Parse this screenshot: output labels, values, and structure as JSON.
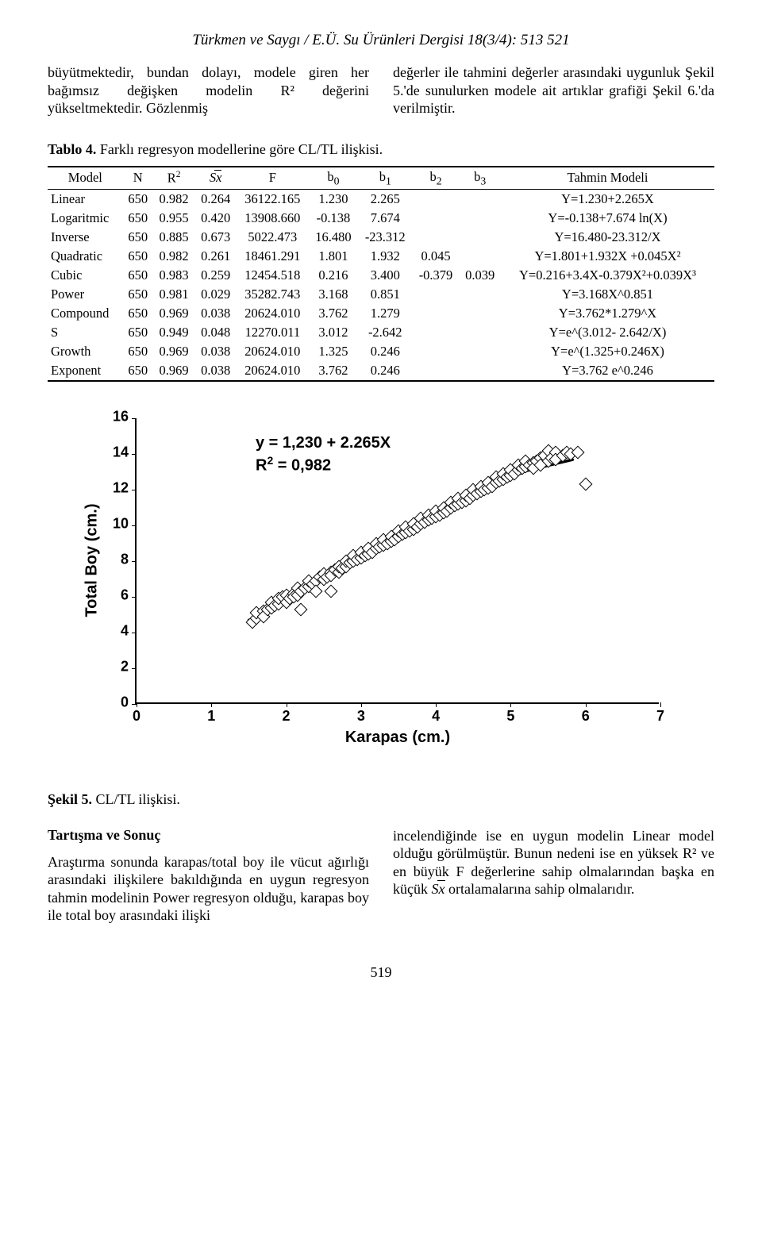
{
  "journal_header": "Türkmen ve Saygı / E.Ü. Su Ürünleri Dergisi 18(3/4): 513 521",
  "intro": {
    "left": "büyütmektedir, bundan dolayı, modele giren her bağımsız değişken modelin R² değerini yükseltmektedir. Gözlenmiş",
    "right": "değerler ile tahmini değerler arasındaki uygunluk Şekil 5.'de sunulurken modele ait artıklar grafiği Şekil 6.'da verilmiştir."
  },
  "table4": {
    "caption_strong": "Tablo 4.",
    "caption_rest": " Farklı regresyon modellerine göre CL/TL ilişkisi.",
    "headers": [
      "Model",
      "N",
      "R²",
      "Sx̄",
      "F",
      "b₀",
      "b₁",
      "b₂",
      "b₃",
      "Tahmin Modeli"
    ],
    "rows": [
      {
        "model": "Linear",
        "N": "650",
        "R2": "0.982",
        "Sx": "0.264",
        "F": "36122.165",
        "b0": "1.230",
        "b1": "2.265",
        "b2": "",
        "b3": "",
        "pred": "Y=1.230+2.265X"
      },
      {
        "model": "Logaritmic",
        "N": "650",
        "R2": "0.955",
        "Sx": "0.420",
        "F": "13908.660",
        "b0": "-0.138",
        "b1": "7.674",
        "b2": "",
        "b3": "",
        "pred": "Y=-0.138+7.674 ln(X)"
      },
      {
        "model": "Inverse",
        "N": "650",
        "R2": "0.885",
        "Sx": "0.673",
        "F": "5022.473",
        "b0": "16.480",
        "b1": "-23.312",
        "b2": "",
        "b3": "",
        "pred": "Y=16.480-23.312/X"
      },
      {
        "model": "Quadratic",
        "N": "650",
        "R2": "0.982",
        "Sx": "0.261",
        "F": "18461.291",
        "b0": "1.801",
        "b1": "1.932",
        "b2": "0.045",
        "b3": "",
        "pred": "Y=1.801+1.932X +0.045X²"
      },
      {
        "model": "Cubic",
        "N": "650",
        "R2": "0.983",
        "Sx": "0.259",
        "F": "12454.518",
        "b0": "0.216",
        "b1": "3.400",
        "b2": "-0.379",
        "b3": "0.039",
        "pred": "Y=0.216+3.4X-0.379X²+0.039X³"
      },
      {
        "model": "Power",
        "N": "650",
        "R2": "0.981",
        "Sx": "0.029",
        "F": "35282.743",
        "b0": "3.168",
        "b1": "0.851",
        "b2": "",
        "b3": "",
        "pred": "Y=3.168X^0.851"
      },
      {
        "model": "Compound",
        "N": "650",
        "R2": "0.969",
        "Sx": "0.038",
        "F": "20624.010",
        "b0": "3.762",
        "b1": "1.279",
        "b2": "",
        "b3": "",
        "pred": "Y=3.762*1.279^X"
      },
      {
        "model": "S",
        "N": "650",
        "R2": "0.949",
        "Sx": "0.048",
        "F": "12270.011",
        "b0": "3.012",
        "b1": "-2.642",
        "b2": "",
        "b3": "",
        "pred": "Y=e^(3.012- 2.642/X)"
      },
      {
        "model": "Growth",
        "N": "650",
        "R2": "0.969",
        "Sx": "0.038",
        "F": "20624.010",
        "b0": "1.325",
        "b1": "0.246",
        "b2": "",
        "b3": "",
        "pred": "Y=e^(1.325+0.246X)"
      },
      {
        "model": "Exponent",
        "N": "650",
        "R2": "0.969",
        "Sx": "0.038",
        "F": "20624.010",
        "b0": "3.762",
        "b1": "0.246",
        "b2": "",
        "b3": "",
        "pred": "Y=3.762 e^0.246"
      }
    ]
  },
  "chart": {
    "type": "scatter",
    "equation_line1": "y = 1,230 + 2.265X",
    "equation_line2": "R² = 0,982",
    "x_axis_title": "Karapas (cm.)",
    "y_axis_title": "Total Boy (cm.)",
    "xlim": [
      0,
      7
    ],
    "ylim": [
      0,
      16
    ],
    "xtick_step": 1,
    "ytick_step": 2,
    "marker_style": "diamond",
    "marker_fill": "#ffffff",
    "marker_border": "#000000",
    "line_color": "#000000",
    "line_width": 3.5,
    "fit_intercept": 1.23,
    "fit_slope": 2.265,
    "points": [
      [
        1.55,
        4.5
      ],
      [
        1.6,
        4.7
      ],
      [
        1.6,
        5.0
      ],
      [
        1.7,
        5.1
      ],
      [
        1.7,
        4.8
      ],
      [
        1.75,
        5.2
      ],
      [
        1.8,
        5.3
      ],
      [
        1.8,
        5.6
      ],
      [
        1.85,
        5.4
      ],
      [
        1.9,
        5.5
      ],
      [
        1.9,
        5.8
      ],
      [
        1.95,
        5.9
      ],
      [
        2.0,
        5.6
      ],
      [
        2.0,
        6.0
      ],
      [
        2.05,
        5.8
      ],
      [
        2.1,
        6.1
      ],
      [
        2.1,
        5.9
      ],
      [
        2.15,
        6.0
      ],
      [
        2.15,
        6.4
      ],
      [
        2.2,
        6.2
      ],
      [
        2.2,
        5.2
      ],
      [
        2.25,
        6.4
      ],
      [
        2.3,
        6.5
      ],
      [
        2.3,
        6.8
      ],
      [
        2.35,
        6.6
      ],
      [
        2.4,
        6.8
      ],
      [
        2.4,
        6.2
      ],
      [
        2.45,
        7.0
      ],
      [
        2.5,
        6.9
      ],
      [
        2.5,
        7.2
      ],
      [
        2.55,
        7.0
      ],
      [
        2.6,
        7.3
      ],
      [
        2.6,
        7.1
      ],
      [
        2.65,
        7.4
      ],
      [
        2.7,
        7.3
      ],
      [
        2.7,
        7.6
      ],
      [
        2.75,
        7.5
      ],
      [
        2.6,
        6.2
      ],
      [
        2.8,
        7.6
      ],
      [
        2.8,
        7.9
      ],
      [
        2.85,
        7.8
      ],
      [
        2.9,
        7.9
      ],
      [
        2.9,
        8.2
      ],
      [
        2.95,
        8.0
      ],
      [
        3.0,
        8.1
      ],
      [
        3.0,
        8.4
      ],
      [
        3.05,
        8.2
      ],
      [
        3.1,
        8.3
      ],
      [
        3.1,
        8.6
      ],
      [
        3.15,
        8.4
      ],
      [
        3.2,
        8.6
      ],
      [
        3.2,
        8.9
      ],
      [
        3.25,
        8.7
      ],
      [
        3.3,
        8.8
      ],
      [
        3.3,
        9.1
      ],
      [
        3.35,
        8.9
      ],
      [
        3.4,
        9.0
      ],
      [
        3.4,
        9.3
      ],
      [
        3.45,
        9.1
      ],
      [
        3.5,
        9.3
      ],
      [
        3.5,
        9.6
      ],
      [
        3.55,
        9.4
      ],
      [
        3.6,
        9.5
      ],
      [
        3.6,
        9.8
      ],
      [
        3.65,
        9.6
      ],
      [
        3.7,
        9.7
      ],
      [
        3.7,
        10.0
      ],
      [
        3.75,
        9.8
      ],
      [
        3.8,
        10.0
      ],
      [
        3.8,
        10.3
      ],
      [
        3.85,
        10.1
      ],
      [
        3.9,
        10.2
      ],
      [
        3.9,
        10.5
      ],
      [
        3.95,
        10.3
      ],
      [
        4.0,
        10.4
      ],
      [
        4.0,
        10.7
      ],
      [
        4.05,
        10.5
      ],
      [
        4.1,
        10.6
      ],
      [
        4.1,
        10.9
      ],
      [
        4.15,
        10.7
      ],
      [
        4.2,
        10.9
      ],
      [
        4.2,
        11.2
      ],
      [
        4.25,
        11.0
      ],
      [
        4.3,
        11.1
      ],
      [
        4.3,
        11.4
      ],
      [
        4.35,
        11.2
      ],
      [
        4.4,
        11.3
      ],
      [
        4.4,
        11.6
      ],
      [
        4.45,
        11.4
      ],
      [
        4.5,
        11.6
      ],
      [
        4.5,
        11.9
      ],
      [
        4.55,
        11.7
      ],
      [
        4.6,
        11.8
      ],
      [
        4.6,
        12.1
      ],
      [
        4.65,
        11.9
      ],
      [
        4.7,
        12.0
      ],
      [
        4.7,
        12.3
      ],
      [
        4.75,
        12.1
      ],
      [
        4.8,
        12.3
      ],
      [
        4.8,
        12.6
      ],
      [
        4.85,
        12.4
      ],
      [
        4.9,
        12.5
      ],
      [
        4.9,
        12.8
      ],
      [
        4.95,
        12.6
      ],
      [
        5.0,
        12.7
      ],
      [
        5.0,
        13.0
      ],
      [
        5.05,
        12.8
      ],
      [
        5.1,
        13.0
      ],
      [
        5.1,
        13.3
      ],
      [
        5.15,
        13.1
      ],
      [
        5.2,
        13.2
      ],
      [
        5.2,
        13.5
      ],
      [
        5.25,
        13.3
      ],
      [
        5.3,
        13.4
      ],
      [
        5.3,
        13.1
      ],
      [
        5.35,
        13.5
      ],
      [
        5.4,
        13.7
      ],
      [
        5.4,
        13.3
      ],
      [
        5.45,
        13.8
      ],
      [
        5.5,
        13.5
      ],
      [
        5.5,
        14.1
      ],
      [
        5.55,
        13.7
      ],
      [
        5.6,
        14.0
      ],
      [
        5.6,
        13.6
      ],
      [
        5.7,
        13.8
      ],
      [
        5.75,
        14.0
      ],
      [
        5.8,
        13.9
      ],
      [
        5.9,
        14.0
      ],
      [
        6.0,
        12.2
      ]
    ]
  },
  "fig5_caption_strong": "Şekil 5.",
  "fig5_caption_rest": " CL/TL ilişkisi.",
  "discussion": {
    "title": "Tartışma ve Sonuç",
    "left": "Araştırma sonunda karapas/total boy ile vücut ağırlığı arasındaki ilişkilere bakıldığında en uygun regresyon tahmin modelinin Power regresyon olduğu, karapas boy ile total boy arasındaki ilişki",
    "right1": "incelendiğinde ise en uygun modelin Linear model olduğu görülmüştür. Bunun nedeni ise en yüksek R² ve en büyük F değerlerine sahip olmalarından başka en küçük ",
    "right2": " ortalamalarına sahip olmalarıdır."
  },
  "page_number": "519"
}
